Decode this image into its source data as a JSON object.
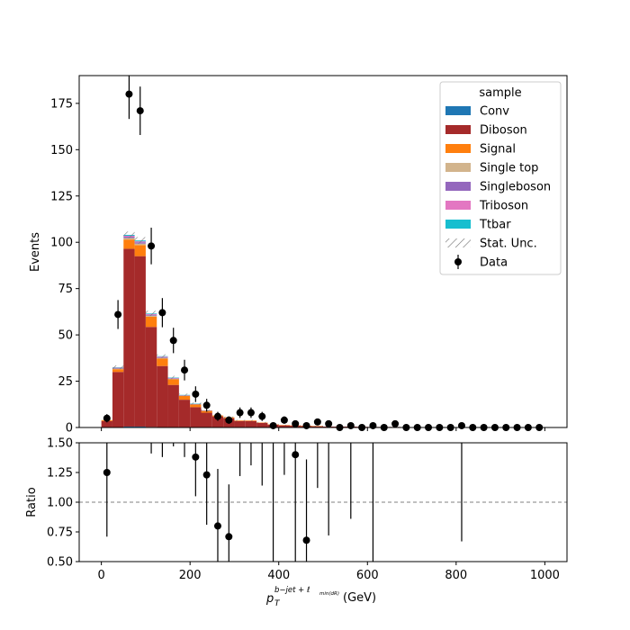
{
  "chart_data": [
    {
      "type": "bar",
      "panel": "main",
      "stacked": true,
      "ylabel": "Events",
      "ylim": [
        0,
        190
      ],
      "yticks": [
        "0",
        "25",
        "50",
        "75",
        "100",
        "125",
        "150",
        "175"
      ],
      "xlim": [
        -50,
        1050
      ],
      "bin_width": 25,
      "bin_centers": [
        12.5,
        37.5,
        62.5,
        87.5,
        112.5,
        137.5,
        162.5,
        187.5,
        212.5,
        237.5,
        262.5,
        287.5,
        312.5,
        337.5,
        362.5,
        387.5,
        412.5,
        437.5,
        462.5,
        487.5,
        512.5,
        537.5,
        562.5,
        587.5,
        612.5,
        637.5,
        662.5,
        687.5,
        712.5,
        737.5,
        762.5,
        787.5,
        812.5,
        837.5,
        862.5,
        887.5,
        912.5,
        937.5,
        962.5,
        987.5
      ],
      "series": [
        {
          "name": "Conv",
          "color": "#1f77b4",
          "values": [
            0,
            0,
            0.5,
            0.5,
            0.3,
            0.2,
            0,
            0,
            0,
            0,
            0,
            0,
            0,
            0,
            0,
            0,
            0,
            0,
            0,
            0,
            0,
            0,
            0,
            0,
            0,
            0,
            0,
            0,
            0,
            0,
            0,
            0,
            0,
            0,
            0,
            0,
            0,
            0,
            0,
            0
          ]
        },
        {
          "name": "Diboson",
          "color": "#a52a2a",
          "values": [
            3.5,
            30,
            96,
            92,
            54,
            33,
            23,
            15,
            11,
            8,
            6,
            5,
            3.5,
            3.5,
            2.5,
            1.5,
            1.2,
            1,
            0.8,
            0.7,
            0.5,
            0.5,
            0.5,
            0.4,
            0.3,
            0.3,
            0.3,
            0.2,
            0.2,
            0.2,
            0.2,
            0.2,
            0.2,
            0.1,
            0.1,
            0.1,
            0.1,
            0.1,
            0.1,
            0.1
          ]
        },
        {
          "name": "Signal",
          "color": "#ff7f0e",
          "values": [
            0.5,
            1.5,
            5,
            6,
            5.5,
            4,
            3,
            2,
            1.5,
            1,
            0.5,
            0.5,
            0.3,
            0.3,
            0.2,
            0.2,
            0.1,
            0.1,
            0.1,
            0.1,
            0,
            0,
            0,
            0,
            0,
            0,
            0,
            0,
            0,
            0,
            0,
            0,
            0,
            0,
            0,
            0,
            0,
            0,
            0,
            0
          ]
        },
        {
          "name": "Single top",
          "color": "#d2b48c",
          "values": [
            0,
            0.3,
            0.8,
            0.8,
            0.6,
            0.4,
            0.3,
            0.2,
            0.1,
            0.1,
            0,
            0,
            0,
            0,
            0,
            0,
            0,
            0,
            0,
            0,
            0,
            0,
            0,
            0,
            0,
            0,
            0,
            0,
            0,
            0,
            0,
            0,
            0,
            0,
            0,
            0,
            0,
            0,
            0,
            0
          ]
        },
        {
          "name": "Singleboson",
          "color": "#9467bd",
          "values": [
            0,
            0.3,
            0.7,
            0.7,
            0.5,
            0.4,
            0.3,
            0.2,
            0.1,
            0.1,
            0,
            0,
            0,
            0,
            0,
            0,
            0,
            0,
            0,
            0,
            0,
            0,
            0,
            0,
            0,
            0,
            0,
            0,
            0,
            0,
            0,
            0,
            0,
            0,
            0,
            0,
            0,
            0,
            0,
            0
          ]
        },
        {
          "name": "Triboson",
          "color": "#e377c2",
          "values": [
            0,
            0.2,
            0.5,
            0.5,
            0.4,
            0.3,
            0.2,
            0.1,
            0.1,
            0,
            0,
            0,
            0,
            0,
            0,
            0,
            0,
            0,
            0,
            0,
            0,
            0,
            0,
            0,
            0,
            0,
            0,
            0,
            0,
            0,
            0,
            0,
            0,
            0,
            0,
            0,
            0,
            0,
            0,
            0
          ]
        },
        {
          "name": "Ttbar",
          "color": "#17becf",
          "values": [
            0,
            0.2,
            0.5,
            0.5,
            0.3,
            0.2,
            0.2,
            0.1,
            0.1,
            0,
            0,
            0,
            0,
            0,
            0,
            0,
            0,
            0,
            0,
            0,
            0,
            0,
            0,
            0,
            0,
            0,
            0,
            0,
            0,
            0,
            0,
            0,
            0,
            0,
            0,
            0,
            0,
            0,
            0,
            0
          ]
        }
      ],
      "stat_unc": [
        0.6,
        1,
        1.8,
        1.8,
        1.4,
        1,
        0.9,
        0.7,
        0.6,
        0.5,
        0.4,
        0.4,
        0.3,
        0.3,
        0.3,
        0.2,
        0.2,
        0.2,
        0.2,
        0.2,
        0.1,
        0.1,
        0.1,
        0.1,
        0.1,
        0.1,
        0.1,
        0.1,
        0.1,
        0.1,
        0.1,
        0.1,
        0.1,
        0.1,
        0.1,
        0.1,
        0.1,
        0.1,
        0.1,
        0.1
      ],
      "data": {
        "name": "Data",
        "x": [
          12.5,
          37.5,
          62.5,
          87.5,
          112.5,
          137.5,
          162.5,
          187.5,
          212.5,
          237.5,
          262.5,
          287.5,
          312.5,
          337.5,
          362.5,
          387.5,
          412.5,
          437.5,
          462.5,
          487.5,
          512.5,
          537.5,
          562.5,
          587.5,
          612.5,
          637.5,
          662.5,
          687.5,
          712.5,
          737.5,
          762.5,
          787.5,
          812.5,
          837.5,
          862.5,
          887.5,
          912.5,
          937.5,
          962.5,
          987.5
        ],
        "y": [
          5,
          61,
          180,
          171,
          98,
          62,
          47,
          31,
          18,
          12,
          6,
          4,
          8,
          8,
          6,
          1,
          4,
          2,
          1,
          3,
          2,
          0,
          1,
          0,
          1,
          0,
          2,
          0,
          0,
          0,
          0,
          0,
          1,
          0,
          0,
          0,
          0,
          0,
          0,
          0
        ]
      },
      "legend": {
        "title": "sample",
        "position": "top-right",
        "entries": [
          "Conv",
          "Diboson",
          "Signal",
          "Single top",
          "Singleboson",
          "Triboson",
          "Ttbar",
          "Stat. Unc.",
          "Data"
        ]
      }
    },
    {
      "type": "scatter",
      "panel": "ratio",
      "ylabel": "Ratio",
      "ylim": [
        0.5,
        1.5
      ],
      "yticks": [
        "0.50",
        "0.75",
        "1.00",
        "1.25",
        "1.50"
      ],
      "xlim": [
        -50,
        1050
      ],
      "xticks": [
        "0",
        "200",
        "400",
        "600",
        "800",
        "1000"
      ],
      "xlabel_main": "p",
      "xlabel_sub": "T",
      "xlabel_sup": "b−jet + ℓ",
      "xlabel_sup_sub": "min(dR)",
      "xlabel_unit": "(GeV)",
      "reference_line": 1.0,
      "points": [
        {
          "x": 12.5,
          "y": 1.25,
          "err": 0.54
        },
        {
          "x": 212.5,
          "y": 1.38,
          "err": 0.33
        },
        {
          "x": 237.5,
          "y": 1.23,
          "err": 0.42
        },
        {
          "x": 262.5,
          "y": 0.8,
          "err": 0.48
        },
        {
          "x": 287.5,
          "y": 0.71,
          "err": 0.44
        },
        {
          "x": 437.5,
          "y": 1.4,
          "err": 1.0
        },
        {
          "x": 462.5,
          "y": 0.68,
          "err": 0.68
        }
      ],
      "offscale_errorbars": [
        {
          "x": 112.5,
          "lo": 1.41
        },
        {
          "x": 137.5,
          "lo": 1.38
        },
        {
          "x": 162.5,
          "lo": 1.47
        },
        {
          "x": 187.5,
          "lo": 1.38
        },
        {
          "x": 312.5,
          "lo": 1.22
        },
        {
          "x": 337.5,
          "lo": 1.31
        },
        {
          "x": 362.5,
          "lo": 1.14
        },
        {
          "x": 387.5,
          "lo": 0.5
        },
        {
          "x": 412.5,
          "lo": 1.23
        },
        {
          "x": 487.5,
          "lo": 1.12
        },
        {
          "x": 512.5,
          "lo": 0.72
        },
        {
          "x": 562.5,
          "lo": 0.86
        },
        {
          "x": 612.5,
          "lo": 0.5
        },
        {
          "x": 812.5,
          "lo": 0.67
        }
      ]
    }
  ]
}
